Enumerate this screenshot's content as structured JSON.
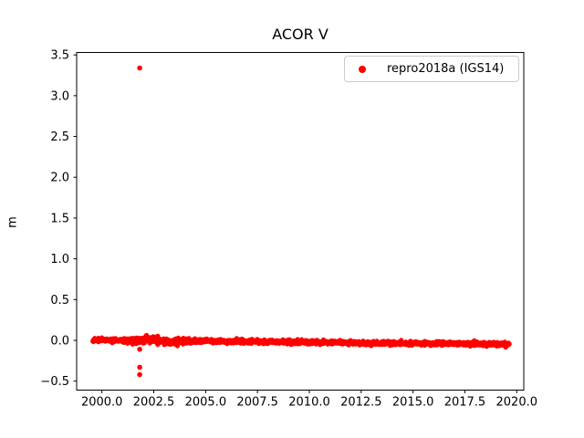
{
  "figure": {
    "background": "#ffffff",
    "accent_color": "#ff0000"
  },
  "chart_data": {
    "type": "scatter",
    "title": "ACOR V",
    "xlabel": "",
    "ylabel": "m",
    "grid": false,
    "legend_position": "upper right",
    "legend": [
      {
        "label": "repro2018a (IGS14)",
        "color": "#ff0000",
        "marker": "dot"
      }
    ],
    "xlim": [
      1998.78,
      2020.34
    ],
    "ylim": [
      -0.61,
      3.53
    ],
    "xticks": [
      2000.0,
      2002.5,
      2005.0,
      2007.5,
      2010.0,
      2012.5,
      2015.0,
      2017.5,
      2020.0
    ],
    "yticks": [
      -0.5,
      0.0,
      0.5,
      1.0,
      1.5,
      2.0,
      2.5,
      3.0,
      3.5
    ],
    "series": [
      {
        "name": "repro2018a (IGS14)",
        "color": "#ff0000",
        "marker_px": 5,
        "band": {
          "t_start": 1999.55,
          "t_end": 2019.65,
          "n_points": 2000,
          "value_start_m": 0.005,
          "value_end_m": -0.048,
          "noise_sigma_m": 0.012,
          "extra_noise": {
            "t0": 2001.0,
            "t1": 2004.2,
            "sigma_m": 0.007
          },
          "features": [
            {
              "t": 2002.4,
              "amp_m": 0.008,
              "width_yr": 0.4
            },
            {
              "t": 2003.35,
              "amp_m": -0.018,
              "width_yr": 0.35
            },
            {
              "t": 2012.5,
              "amp_m": -0.006,
              "width_yr": 0.8
            }
          ]
        },
        "outliers": [
          [
            2001.82,
            3.34
          ],
          [
            2001.82,
            -0.11
          ],
          [
            2001.82,
            -0.33
          ],
          [
            2001.82,
            -0.42
          ]
        ]
      }
    ]
  }
}
